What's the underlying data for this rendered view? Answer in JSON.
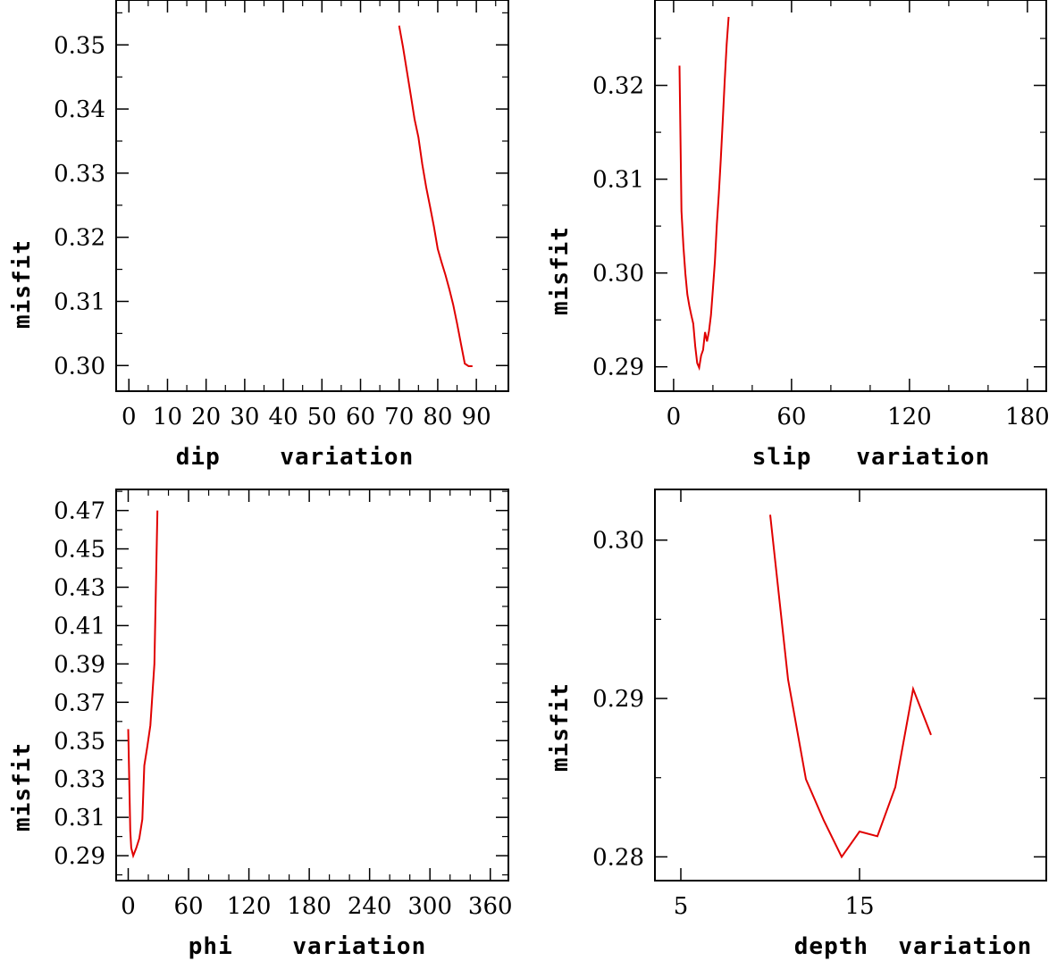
{
  "chart_data": [
    {
      "type": "line",
      "id": "dip",
      "xlabel": "dip    variation",
      "ylabel": "misfit",
      "xlim": [
        -3.3,
        98.3
      ],
      "ylim": [
        0.296,
        0.357
      ],
      "xticks": [
        0,
        10,
        20,
        30,
        40,
        50,
        60,
        70,
        80,
        90
      ],
      "xtick_labels": [
        "0",
        "10",
        "20",
        "30",
        "40",
        "50",
        "60",
        "70",
        "80",
        "90"
      ],
      "xminor": [
        5,
        15,
        25,
        35,
        45,
        55,
        65,
        75,
        85,
        95
      ],
      "yticks": [
        0.3,
        0.31,
        0.32,
        0.33,
        0.34,
        0.35
      ],
      "ytick_labels": [
        "0.30",
        "0.31",
        "0.32",
        "0.33",
        "0.34",
        "0.35"
      ],
      "yminor": [
        0.295,
        0.305,
        0.315,
        0.325,
        0.335,
        0.345,
        0.355
      ],
      "series": [
        {
          "name": "misfit",
          "color": "#e00000",
          "x": [
            70,
            71,
            72,
            73,
            74,
            75,
            76,
            77,
            78,
            79,
            80,
            81,
            82,
            83,
            84,
            85,
            86,
            87,
            88,
            89
          ],
          "y": [
            0.353,
            0.3497,
            0.3459,
            0.3422,
            0.3384,
            0.3356,
            0.3314,
            0.3278,
            0.3248,
            0.3217,
            0.3182,
            0.3161,
            0.3141,
            0.3119,
            0.3095,
            0.3066,
            0.3034,
            0.3003,
            0.2999,
            0.2999
          ]
        }
      ]
    },
    {
      "type": "line",
      "id": "slip",
      "xlabel": "slip   variation",
      "ylabel": "misfit",
      "xlim": [
        -9.5,
        189.6
      ],
      "ylim": [
        0.2874,
        0.3291
      ],
      "xticks": [
        0,
        60,
        120,
        180
      ],
      "xtick_labels": [
        "0",
        "60",
        "120",
        "180"
      ],
      "xminor": [
        20,
        40,
        80,
        100,
        140,
        160
      ],
      "yticks": [
        0.29,
        0.3,
        0.31,
        0.32
      ],
      "ytick_labels": [
        "0.29",
        "0.30",
        "0.31",
        "0.32"
      ],
      "yminor": [
        0.295,
        0.305,
        0.315,
        0.325
      ],
      "series": [
        {
          "name": "misfit",
          "color": "#e00000",
          "x": [
            3,
            4,
            5,
            6,
            7,
            8,
            9,
            10,
            11,
            12,
            13,
            14,
            15,
            16,
            17,
            18,
            19,
            20,
            21,
            22,
            23,
            24,
            25,
            26,
            27,
            28
          ],
          "y": [
            0.3221,
            0.3066,
            0.3028,
            0.2999,
            0.2977,
            0.2965,
            0.2955,
            0.2946,
            0.2922,
            0.2904,
            0.2899,
            0.2912,
            0.2918,
            0.2937,
            0.2927,
            0.2938,
            0.2955,
            0.2983,
            0.3012,
            0.3052,
            0.3084,
            0.3121,
            0.3162,
            0.3205,
            0.3244,
            0.3273
          ]
        }
      ]
    },
    {
      "type": "line",
      "id": "phi",
      "xlabel": "phi    variation",
      "ylabel": "misfit",
      "xlim": [
        -12,
        378
      ],
      "ylim": [
        0.277,
        0.481
      ],
      "xticks": [
        0,
        60,
        120,
        180,
        240,
        300,
        360
      ],
      "xtick_labels": [
        "0",
        "60",
        "120",
        "180",
        "240",
        "300",
        "360"
      ],
      "xminor": [
        20,
        40,
        80,
        100,
        140,
        160,
        200,
        220,
        260,
        280,
        320,
        340
      ],
      "yticks": [
        0.29,
        0.31,
        0.33,
        0.35,
        0.37,
        0.39,
        0.41,
        0.43,
        0.45,
        0.47
      ],
      "ytick_labels": [
        "0.29",
        "0.31",
        "0.33",
        "0.35",
        "0.37",
        "0.39",
        "0.41",
        "0.43",
        "0.45",
        "0.47"
      ],
      "yminor": [
        0.28,
        0.3,
        0.32,
        0.34,
        0.36,
        0.38,
        0.4,
        0.42,
        0.44,
        0.46,
        0.48
      ],
      "series": [
        {
          "name": "misfit",
          "color": "#e00000",
          "x": [
            0,
            1,
            2,
            3,
            5,
            8,
            11,
            14,
            16,
            19,
            22,
            26,
            29
          ],
          "y": [
            0.356,
            0.331,
            0.303,
            0.294,
            0.29,
            0.294,
            0.299,
            0.309,
            0.337,
            0.347,
            0.358,
            0.39,
            0.47
          ]
        }
      ]
    },
    {
      "type": "line",
      "id": "depth",
      "xlabel": "depth  variation",
      "ylabel": "misfit",
      "xlim": [
        3.55,
        25.45
      ],
      "ylim": [
        0.2785,
        0.3032
      ],
      "xticks": [
        5,
        15
      ],
      "xtick_labels": [
        "5",
        "15"
      ],
      "xminor": [],
      "yticks": [
        0.28,
        0.29,
        0.3
      ],
      "ytick_labels": [
        "0.28",
        "0.29",
        "0.30"
      ],
      "yminor": [
        0.285,
        0.295
      ],
      "series": [
        {
          "name": "misfit",
          "color": "#e00000",
          "x": [
            10,
            11,
            12,
            13,
            14,
            15,
            16,
            17,
            18,
            19
          ],
          "y": [
            0.3016,
            0.2912,
            0.2849,
            0.2823,
            0.28,
            0.2816,
            0.2813,
            0.2844,
            0.2906,
            0.2877
          ]
        }
      ]
    }
  ]
}
